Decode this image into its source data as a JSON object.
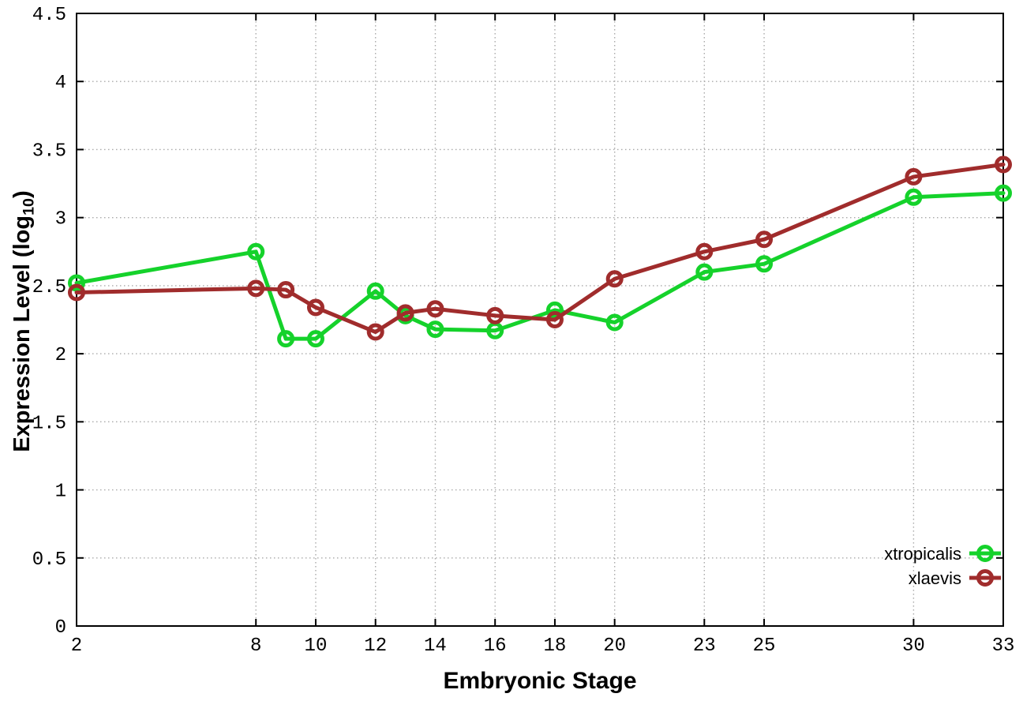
{
  "chart_data": {
    "type": "line",
    "title": "",
    "xlabel": "Embryonic Stage",
    "ylabel": {
      "pre": "Expression Level (log",
      "sub": "10",
      "post": ")"
    },
    "xlim": [
      2,
      33
    ],
    "ylim": [
      0,
      4.5
    ],
    "x_ticks": [
      2,
      8,
      10,
      12,
      14,
      16,
      18,
      20,
      23,
      25,
      30,
      33
    ],
    "y_ticks": [
      0,
      0.5,
      1,
      1.5,
      2,
      2.5,
      3,
      3.5,
      4,
      4.5
    ],
    "grid": true,
    "legend_position": "bottom-right",
    "background_color": "#ffffff",
    "axis_color": "#000000",
    "grid_color": "#a9a9a9",
    "stages": [
      2,
      8,
      9,
      10,
      12,
      13,
      14,
      16,
      18,
      20,
      23,
      25,
      30,
      33
    ],
    "series": [
      {
        "name": "xtropicalis",
        "color": "#15d22b",
        "values": [
          2.52,
          2.75,
          2.11,
          2.11,
          2.46,
          2.28,
          2.18,
          2.17,
          2.32,
          2.23,
          2.6,
          2.66,
          3.15,
          3.18
        ]
      },
      {
        "name": "xlaevis",
        "color": "#a02c2c",
        "values": [
          2.45,
          2.48,
          2.47,
          2.34,
          2.16,
          2.3,
          2.33,
          2.28,
          2.25,
          2.55,
          2.75,
          2.84,
          3.3,
          3.39
        ]
      }
    ]
  }
}
